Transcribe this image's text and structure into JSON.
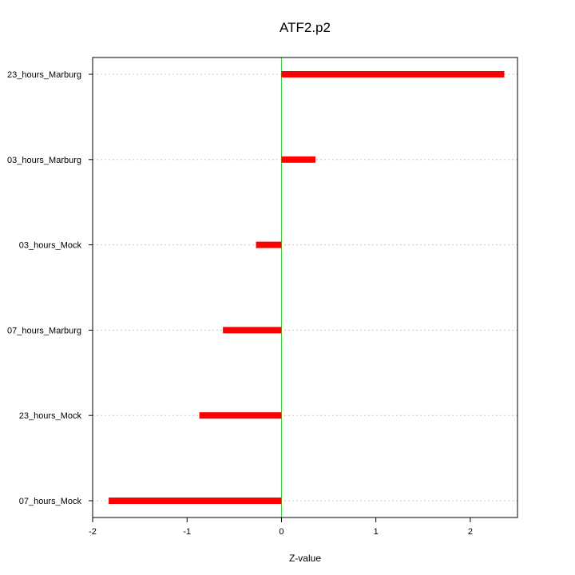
{
  "chart_data": {
    "type": "bar",
    "orientation": "horizontal",
    "title": "ATF2.p2",
    "xlabel": "Z-value",
    "ylabel": "",
    "categories": [
      "07_hours_Mock",
      "23_hours_Mock",
      "07_hours_Marburg",
      "03_hours_Mock",
      "03_hours_Marburg",
      "23_hours_Marburg"
    ],
    "values": [
      -1.83,
      -0.87,
      -0.62,
      -0.27,
      0.36,
      2.36
    ],
    "xlim": [
      -2,
      2.5
    ],
    "xticks": [
      "-2",
      "-1",
      "0",
      "1",
      "2"
    ],
    "xtick_values": [
      -2,
      -1,
      0,
      1,
      2
    ],
    "grid": "horizontal dotted",
    "reference_line": 0,
    "colors": {
      "bar": "#ff0000",
      "zero_line": "#33cc33",
      "grid": "#c8c8c8",
      "axis": "#000000"
    }
  }
}
